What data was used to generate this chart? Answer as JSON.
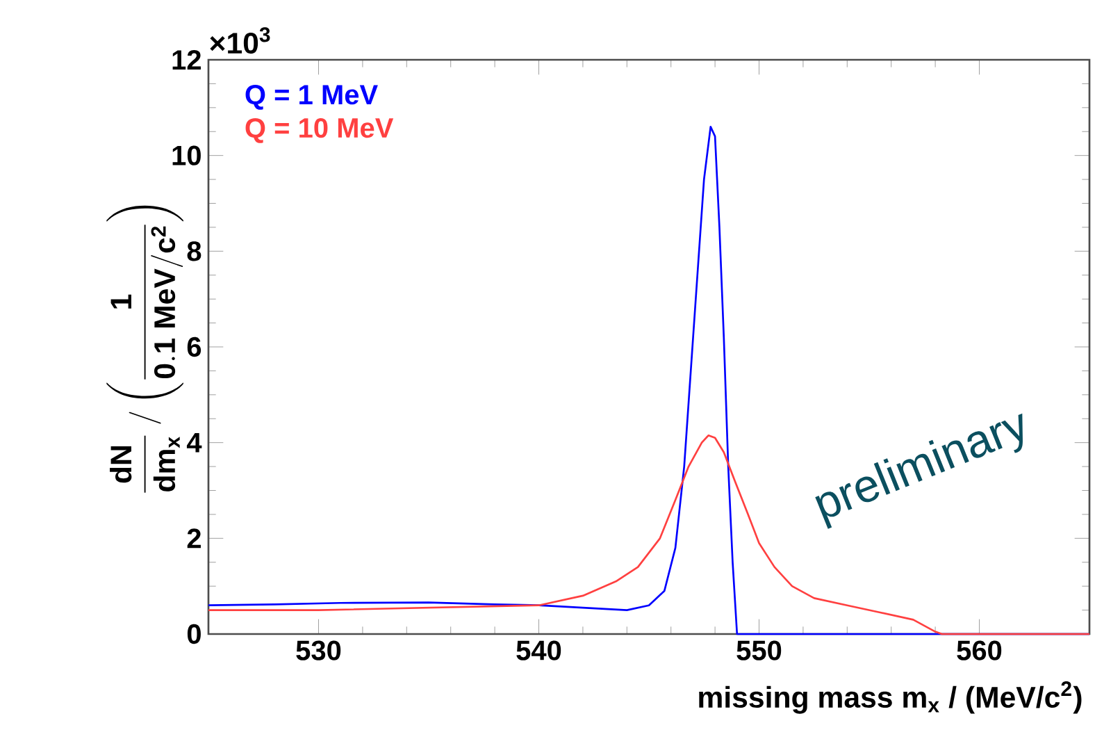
{
  "chart_data": {
    "type": "line",
    "xlabel": "missing mass m$_{x}$ / (MeV/c$^{2}$)",
    "ylabel": "\\frac{\\mathbf{dN}}{\\mathbf{dm_{x}}}\\ \\mathbf{/}\\left(\\frac{\\mathbf{1}}{\\mathbf{0.1\\ MeV/c^{2}}}\\right)",
    "xlim": [
      525,
      565
    ],
    "xticks": [
      530,
      540,
      550,
      560
    ],
    "ylim": [
      0,
      12
    ],
    "yticks": [
      0,
      2,
      4,
      6,
      8,
      10,
      12
    ],
    "grid": false,
    "legend": "top left",
    "marker": "none",
    "line_style": "solid",
    "annotations": [
      {
        "text": "×10$^{3}$"
      },
      {
        "text": "preliminary"
      }
    ],
    "series": [
      {
        "name": "Q = 1 MeV",
        "color": "#0000ff",
        "x": [
          525,
          528,
          531,
          535,
          538,
          540,
          542,
          544,
          545,
          545.7,
          546.2,
          546.6,
          546.9,
          547.2,
          547.5,
          547.8,
          548.0,
          548.2,
          548.4,
          548.6,
          548.8,
          549.0,
          565
        ],
        "values": [
          0.6,
          0.62,
          0.65,
          0.66,
          0.62,
          0.6,
          0.55,
          0.5,
          0.6,
          0.9,
          1.8,
          3.5,
          5.5,
          7.5,
          9.5,
          10.6,
          10.4,
          8.5,
          6.2,
          3.5,
          1.5,
          0,
          0
        ]
      },
      {
        "name": "Q = 10 MeV",
        "color": "#ff4040",
        "x": [
          525,
          530,
          535,
          540,
          542,
          543.5,
          544.5,
          545.5,
          546.2,
          546.8,
          547.4,
          547.7,
          548.0,
          548.4,
          548.9,
          549.5,
          550,
          550.7,
          551.5,
          552.5,
          554,
          555.5,
          557,
          558,
          558.3,
          565
        ],
        "values": [
          0.5,
          0.5,
          0.55,
          0.6,
          0.8,
          1.1,
          1.4,
          2.0,
          2.8,
          3.5,
          4.0,
          4.15,
          4.1,
          3.8,
          3.2,
          2.5,
          1.9,
          1.4,
          1.0,
          0.75,
          0.6,
          0.45,
          0.3,
          0.05,
          0,
          0
        ]
      }
    ]
  }
}
